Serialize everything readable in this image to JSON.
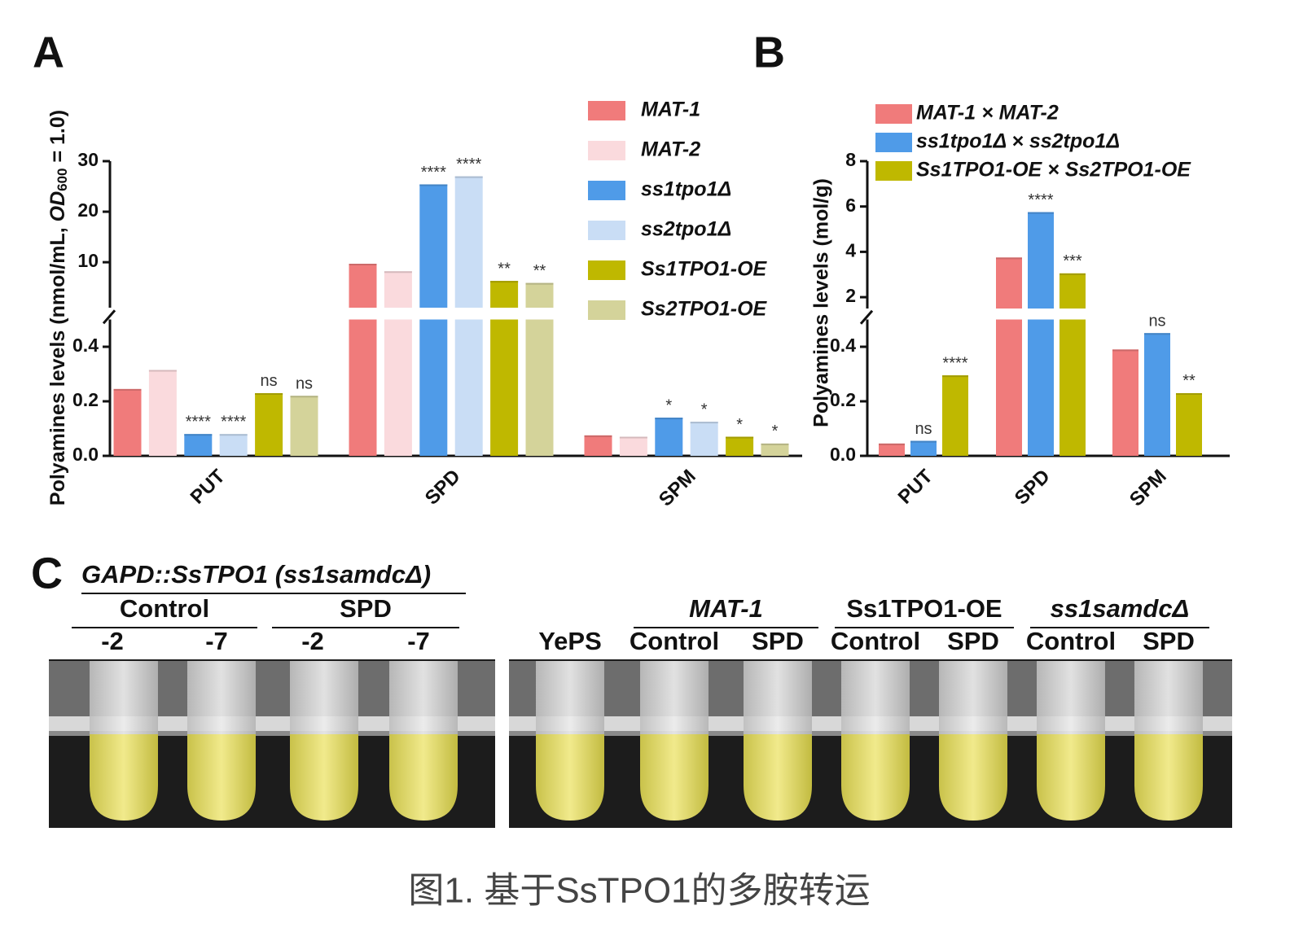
{
  "chart_data": [
    {
      "type": "bar",
      "panel": "A",
      "ylabel": "Polyamines levels (nmol/mL, ",
      "ylabel_italic": "OD",
      "ylabel_sub": "600",
      "ylabel_tail": " = 1.0)",
      "categories": [
        "PUT",
        "SPD",
        "SPM"
      ],
      "series": [
        {
          "name": "MAT-1",
          "color": "#f07b7b",
          "values": [
            0.245,
            9.7,
            0.075
          ],
          "annotations": [
            null,
            null,
            null
          ]
        },
        {
          "name": "MAT-2",
          "color": "#fadadd",
          "values": [
            0.315,
            8.2,
            0.07
          ],
          "annotations": [
            null,
            null,
            null
          ]
        },
        {
          "name": "ss1tpo1Δ",
          "color": "#4f9be8",
          "values": [
            0.08,
            25.4,
            0.14
          ],
          "annotations": [
            "****",
            "****",
            "*"
          ]
        },
        {
          "name": "ss2tpo1Δ",
          "color": "#c9ddf5",
          "values": [
            0.08,
            27.0,
            0.125
          ],
          "annotations": [
            "****",
            "****",
            "*"
          ]
        },
        {
          "name": "Ss1TPO1-OE",
          "color": "#bfb800",
          "values": [
            0.23,
            6.3,
            0.07
          ],
          "annotations": [
            "ns",
            "**",
            "*"
          ]
        },
        {
          "name": "Ss2TPO1-OE",
          "color": "#d4d39a",
          "values": [
            0.22,
            5.9,
            0.045
          ],
          "annotations": [
            "ns",
            "**",
            "*"
          ]
        }
      ],
      "ylim": [
        0,
        0.5
      ],
      "yticks": [
        {
          "value": 0,
          "label": "0.0"
        },
        0.2,
        0.4
      ],
      "ylim_upper": [
        1,
        30
      ],
      "yticks_upper": [
        10,
        20,
        30
      ],
      "axis_break": true
    },
    {
      "type": "bar",
      "panel": "B",
      "ylabel": "Polyamines levels (mol/g)",
      "categories": [
        "PUT",
        "SPD",
        "SPM"
      ],
      "series": [
        {
          "name": "MAT-1 × MAT-2",
          "color": "#f07b7b",
          "values": [
            0.045,
            3.75,
            0.39
          ],
          "annotations": [
            null,
            null,
            null
          ]
        },
        {
          "name": "ss1tpo1Δ × ss2tpo1Δ",
          "color": "#4f9be8",
          "values": [
            0.055,
            5.75,
            0.45
          ],
          "annotations": [
            "ns",
            "****",
            "ns"
          ]
        },
        {
          "name": "Ss1TPO1-OE × Ss2TPO1-OE",
          "color": "#bfb800",
          "values": [
            0.295,
            3.05,
            0.23
          ],
          "annotations": [
            "****",
            "***",
            "**"
          ]
        }
      ],
      "ylim": [
        0,
        0.5
      ],
      "yticks": [
        {
          "value": 0,
          "label": "0.0"
        },
        0.2,
        0.4
      ],
      "ylim_upper": [
        1.5,
        8
      ],
      "yticks_upper": [
        2,
        4,
        6,
        8
      ],
      "axis_break": true
    }
  ],
  "panel_c": {
    "label": "C",
    "title": "GAPD::SsTPO1 (ss1samdcΔ)",
    "left_groups": [
      {
        "name": "Control",
        "lanes": [
          "-2",
          "-7"
        ]
      },
      {
        "name": "SPD",
        "lanes": [
          "-2",
          "-7"
        ]
      }
    ],
    "right_first_lane": "YePS",
    "right_groups": [
      {
        "name": "MAT-1",
        "lanes": [
          "Control",
          "SPD"
        ]
      },
      {
        "name": "Ss1TPO1-OE",
        "lanes": [
          "Control",
          "SPD"
        ]
      },
      {
        "name": "ss1samdcΔ",
        "lanes": [
          "Control",
          "SPD"
        ]
      }
    ]
  },
  "caption": "图1. 基于SsTPO1的多胺转运"
}
